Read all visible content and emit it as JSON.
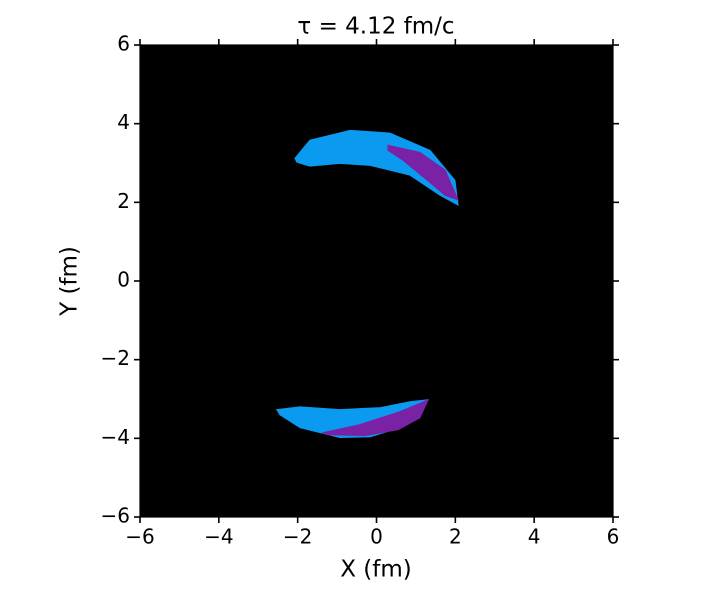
{
  "chart_data": {
    "type": "region",
    "title": "τ =  4.12 fm/c",
    "x_label": "X (fm)",
    "y_label": "Y (fm)",
    "background": "#000000",
    "xlim": [
      -6,
      6
    ],
    "ylim": [
      -6,
      6
    ],
    "xticks": [
      {
        "value": -6,
        "label": "−6"
      },
      {
        "value": -4,
        "label": "−4"
      },
      {
        "value": -2,
        "label": "−2"
      },
      0,
      2,
      4,
      6
    ],
    "yticks": [
      {
        "value": -6,
        "label": "−6"
      },
      {
        "value": -4,
        "label": "−4"
      },
      {
        "value": -2,
        "label": "−2"
      },
      0,
      2,
      4,
      6
    ],
    "series": [
      {
        "color": "#0a9bf0",
        "x": [
          -2.07,
          -1.69,
          -0.67,
          0.34,
          1.36,
          1.99,
          2.07,
          1.61,
          0.85,
          -0.16,
          -0.93,
          -1.69,
          -2.02
        ],
        "y": [
          3.12,
          3.58,
          3.83,
          3.76,
          3.32,
          2.56,
          1.93,
          2.18,
          2.69,
          2.94,
          2.99,
          2.92,
          3.02
        ]
      },
      {
        "color": "#7a22a6",
        "x": [
          0.29,
          1.1,
          1.74,
          2.07,
          1.74,
          1.23,
          0.67,
          0.29
        ],
        "y": [
          3.45,
          3.27,
          2.82,
          2.06,
          2.18,
          2.61,
          3.07,
          3.32
        ]
      },
      {
        "color": "#0a9bf0",
        "x": [
          -2.53,
          -1.94,
          -0.93,
          0.09,
          0.85,
          1.31,
          1.1,
          0.6,
          -0.16,
          -0.93,
          -1.94,
          -2.45
        ],
        "y": [
          -3.27,
          -3.2,
          -3.27,
          -3.22,
          -3.07,
          -3.02,
          -3.4,
          -3.73,
          -3.96,
          -3.98,
          -3.73,
          -3.4
        ]
      },
      {
        "color": "#7a22a6",
        "x": [
          -1.38,
          -0.42,
          0.6,
          1.31,
          1.1,
          0.55,
          -0.29,
          -1.18
        ],
        "y": [
          -3.86,
          -3.65,
          -3.32,
          -3.02,
          -3.48,
          -3.78,
          -3.93,
          -3.91
        ]
      }
    ]
  }
}
